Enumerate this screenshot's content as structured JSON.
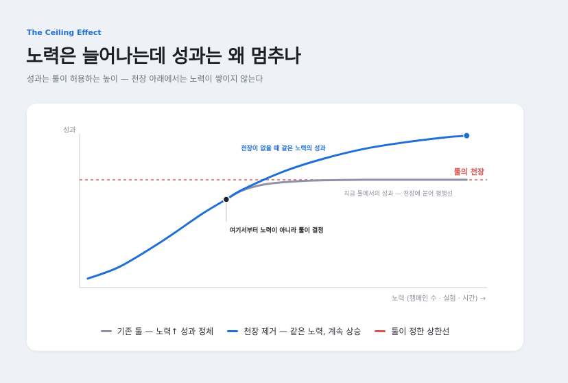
{
  "header": {
    "eyebrow": "The Ceiling Effect",
    "title": "노력은 늘어나는데 성과는 왜 멈추나",
    "subtitle": "성과는 툴이 허용하는 높이 — 천장 아래에서는 노력이 쌓이지 않는다"
  },
  "colors": {
    "ceiling": "#d9534f",
    "current": "#8e91a8",
    "no_ceiling": "#1f6fd6",
    "axis": "#c9ced6",
    "label_muted": "#8a909b"
  },
  "chart_data": {
    "type": "line",
    "ylabel": "성과",
    "xlabel": "노력 (캠페인 수 · 실험 · 시간) →",
    "xlim": [
      0,
      10
    ],
    "ylim": [
      0,
      10
    ],
    "grid": false,
    "legend_position": "bottom",
    "ceiling": {
      "value": 6.6,
      "label": "툴의 천장"
    },
    "series": [
      {
        "name": "기존 툴 — 노력↑ 성과 정체",
        "key": "current",
        "annotation": "지금 툴에서의 성과 — 천장에 붙어 평행선",
        "x": [
          3.6,
          4.0,
          4.5,
          5.0,
          5.5,
          6.0,
          7.0,
          8.0,
          9.0,
          9.5
        ],
        "y": [
          5.4,
          5.95,
          6.3,
          6.45,
          6.53,
          6.57,
          6.6,
          6.6,
          6.6,
          6.6
        ]
      },
      {
        "name": "천장 제거 — 같은 노력, 계속 상승",
        "key": "no_ceiling",
        "annotation": "천장이 없을 때 같은 노력의 성과",
        "x": [
          0.2,
          1.0,
          2.0,
          3.0,
          3.6,
          4.0,
          5.0,
          6.0,
          7.0,
          8.0,
          9.0,
          9.5
        ],
        "y": [
          0.55,
          1.3,
          2.8,
          4.5,
          5.4,
          6.0,
          7.1,
          7.9,
          8.5,
          8.9,
          9.2,
          9.3
        ]
      }
    ],
    "decision_point": {
      "x": 3.6,
      "y": 5.4,
      "label": "여기서부터 노력이 아니라 툴이 결정"
    },
    "legend": [
      {
        "label": "기존 툴 — 노력↑ 성과 정체",
        "key": "current"
      },
      {
        "label": "천장 제거 — 같은 노력, 계속 상승",
        "key": "no_ceiling"
      },
      {
        "label": "툴이 정한 상한선",
        "key": "ceiling"
      }
    ]
  }
}
